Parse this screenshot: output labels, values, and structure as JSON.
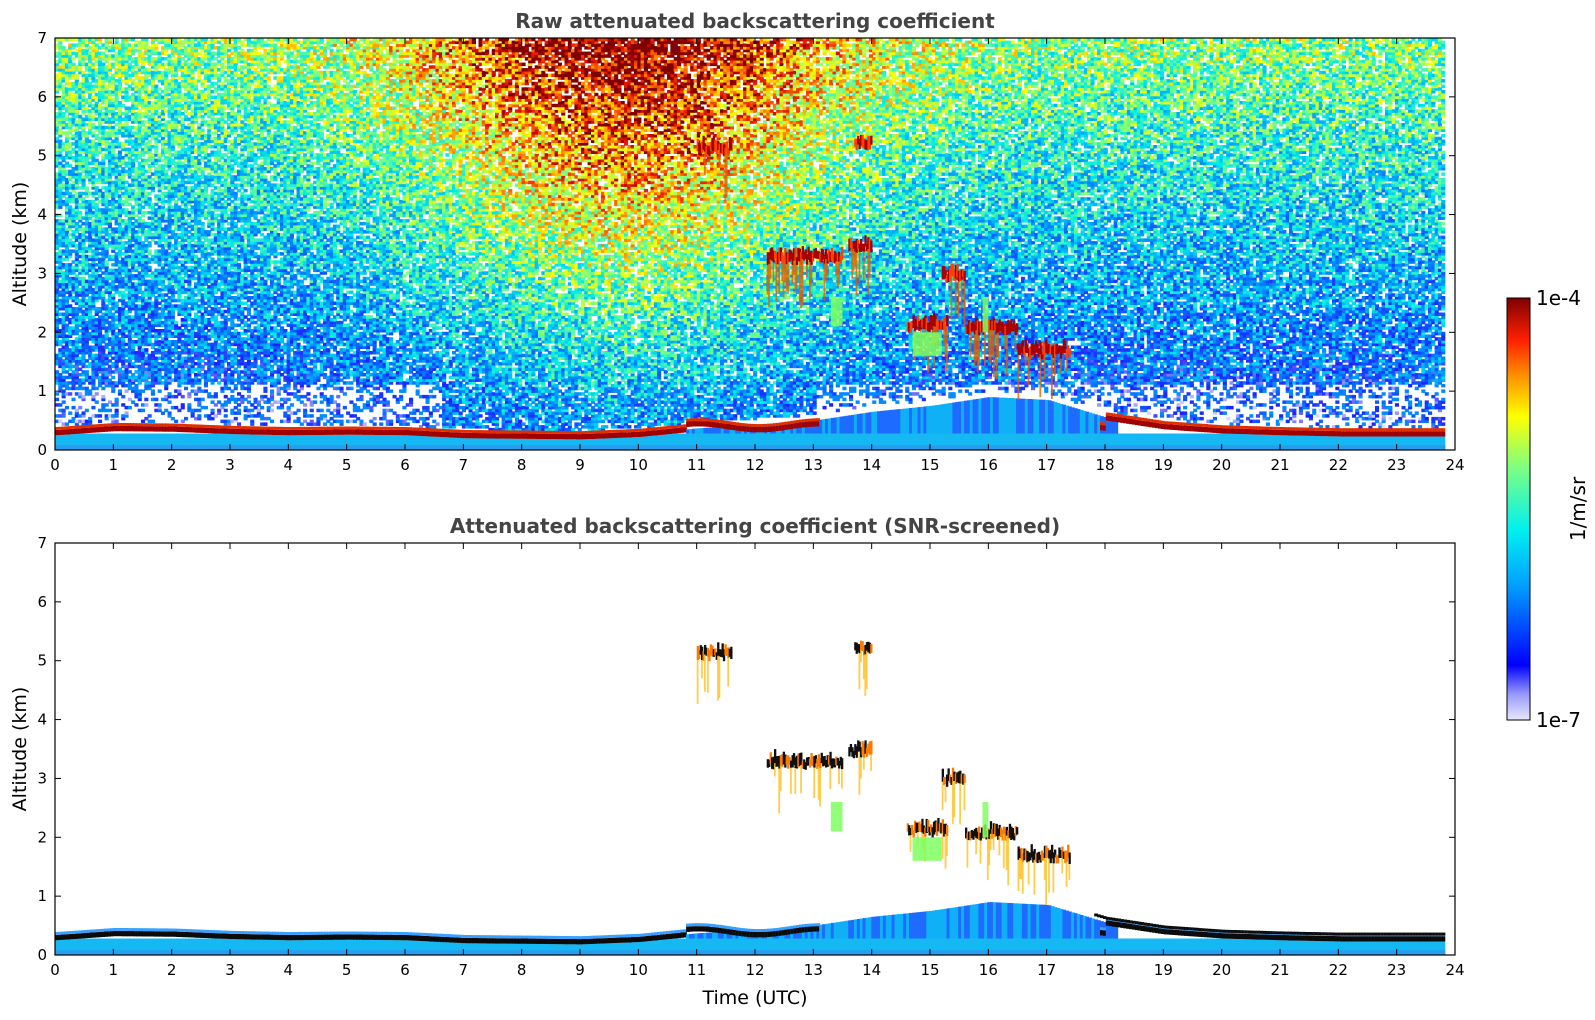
{
  "chart_data": [
    {
      "type": "heatmap",
      "title": "Raw attenuated backscattering coefficient",
      "xlabel": "",
      "ylabel": "Altitude (km)",
      "xlim": [
        0,
        24
      ],
      "ylim": [
        0,
        7
      ],
      "x_ticks": [
        "0",
        "1",
        "2",
        "3",
        "4",
        "5",
        "6",
        "7",
        "8",
        "9",
        "10",
        "11",
        "12",
        "13",
        "14",
        "15",
        "16",
        "17",
        "18",
        "19",
        "20",
        "21",
        "22",
        "23",
        "24"
      ],
      "y_ticks": [
        "0",
        "1",
        "2",
        "3",
        "4",
        "5",
        "6",
        "7"
      ],
      "screened": false,
      "boundary_layer_top_km": [
        [
          0,
          0.3
        ],
        [
          1,
          0.37
        ],
        [
          2,
          0.36
        ],
        [
          3,
          0.32
        ],
        [
          4,
          0.3
        ],
        [
          5,
          0.31
        ],
        [
          6,
          0.3
        ],
        [
          7,
          0.25
        ],
        [
          8,
          0.24
        ],
        [
          9,
          0.23
        ],
        [
          10,
          0.27
        ],
        [
          11,
          0.37
        ],
        [
          12,
          0.43
        ],
        [
          13,
          0.5
        ],
        [
          14,
          0.65
        ],
        [
          15,
          0.75
        ],
        [
          16,
          0.9
        ],
        [
          17,
          0.85
        ],
        [
          18,
          0.55
        ],
        [
          19,
          0.4
        ],
        [
          20,
          0.33
        ],
        [
          21,
          0.3
        ],
        [
          22,
          0.28
        ],
        [
          23,
          0.28
        ],
        [
          23.8,
          0.28
        ]
      ],
      "cloud_features": [
        {
          "t_start": 11.0,
          "t_end": 11.6,
          "alt_km": 5.05,
          "level": "high"
        },
        {
          "t_start": 13.7,
          "t_end": 14.0,
          "alt_km": 5.15,
          "level": "high"
        },
        {
          "t_start": 12.2,
          "t_end": 13.5,
          "alt_km": 3.2,
          "level": "high"
        },
        {
          "t_start": 13.6,
          "t_end": 14.0,
          "alt_km": 3.4,
          "level": "high"
        },
        {
          "t_start": 15.2,
          "t_end": 15.6,
          "alt_km": 2.9,
          "level": "high"
        },
        {
          "t_start": 14.6,
          "t_end": 15.3,
          "alt_km": 2.05,
          "level": "high"
        },
        {
          "t_start": 15.6,
          "t_end": 16.5,
          "alt_km": 2.0,
          "level": "high"
        },
        {
          "t_start": 16.5,
          "t_end": 17.4,
          "alt_km": 1.6,
          "level": "high"
        }
      ]
    },
    {
      "type": "heatmap",
      "title": "Attenuated backscattering coefficient (SNR-screened)",
      "xlabel": "Time (UTC)",
      "ylabel": "Altitude (km)",
      "xlim": [
        0,
        24
      ],
      "ylim": [
        0,
        7
      ],
      "x_ticks": [
        "0",
        "1",
        "2",
        "3",
        "4",
        "5",
        "6",
        "7",
        "8",
        "9",
        "10",
        "11",
        "12",
        "13",
        "14",
        "15",
        "16",
        "17",
        "18",
        "19",
        "20",
        "21",
        "22",
        "23",
        "24"
      ],
      "y_ticks": [
        "0",
        "1",
        "2",
        "3",
        "4",
        "5",
        "6",
        "7"
      ],
      "screened": true
    }
  ],
  "colorbar": {
    "label": "1/m/sr",
    "max_label": "1e-4",
    "min_label": "1e-7",
    "colormap": "jet",
    "colors": [
      "#e8e8f8",
      "#0000ff",
      "#00c8ff",
      "#7fff7f",
      "#ffdc00",
      "#ff3000",
      "#800000"
    ]
  }
}
